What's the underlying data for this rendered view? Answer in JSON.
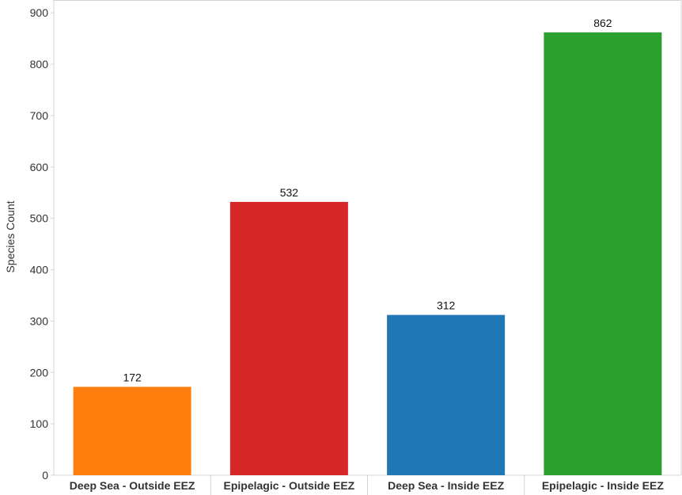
{
  "chart_data": {
    "type": "bar",
    "categories": [
      "Deep Sea - Outside EEZ",
      "Epipelagic - Outside EEZ",
      "Deep Sea - Inside EEZ",
      "Epipelagic - Inside EEZ"
    ],
    "values": [
      172,
      532,
      312,
      862
    ],
    "colors": [
      "#ff7f0e",
      "#d62728",
      "#1f77b4",
      "#2ca02c"
    ],
    "title": "",
    "xlabel": "",
    "ylabel": "Species Count",
    "ylim": [
      0,
      925
    ],
    "yticks": [
      0,
      100,
      200,
      300,
      400,
      500,
      600,
      700,
      800,
      900
    ],
    "data_labels": true,
    "grid": false,
    "legend": "none"
  }
}
